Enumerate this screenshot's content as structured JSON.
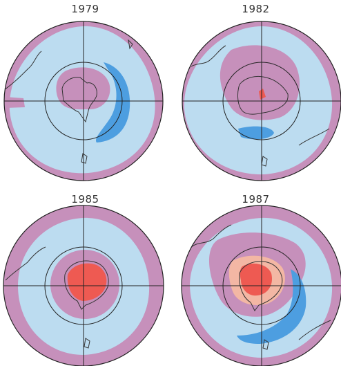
{
  "figure": {
    "panels": [
      {
        "year": "1979",
        "hole_core": false,
        "hole_ring": false
      },
      {
        "year": "1982",
        "hole_core": true,
        "hole_ring": false
      },
      {
        "year": "1985",
        "hole_core": true,
        "hole_ring": false
      },
      {
        "year": "1987",
        "hole_core": true,
        "hole_ring": true
      }
    ],
    "colors": {
      "ocean_light_blue": "#bcdcf0",
      "low_ozone_pink": "#c690bb",
      "very_low_red": "#ee5a52",
      "transition_peach": "#f3b7a4",
      "high_ozone_blue": "#4d9ee0",
      "coast_line": "#333333",
      "grid_line": "#222222"
    }
  }
}
